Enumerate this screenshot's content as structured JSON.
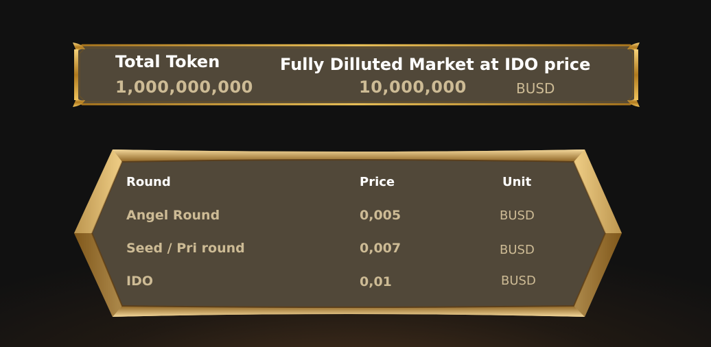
{
  "summary": {
    "total_token_label": "Total Token",
    "total_token_value": "1,000,000,000",
    "fdv_label": "Fully Dilluted Market at IDO price",
    "fdv_value": "10,000,000",
    "fdv_unit": "BUSD"
  },
  "rounds_table": {
    "headers": {
      "round": "Round",
      "price": "Price",
      "unit": "Unit"
    },
    "rows": [
      {
        "round": "Angel Round",
        "price": "0,005",
        "unit": "BUSD"
      },
      {
        "round": "Seed / Pri round",
        "price": "0,007",
        "unit": "BUSD"
      },
      {
        "round": "IDO",
        "price": "0,01",
        "unit": "BUSD"
      }
    ]
  },
  "colors": {
    "background": "#111111",
    "panel_fill": "#514839",
    "gold_frame": "#d6a63c",
    "heading_text": "#ffffff",
    "value_text": "#cdbb95"
  }
}
